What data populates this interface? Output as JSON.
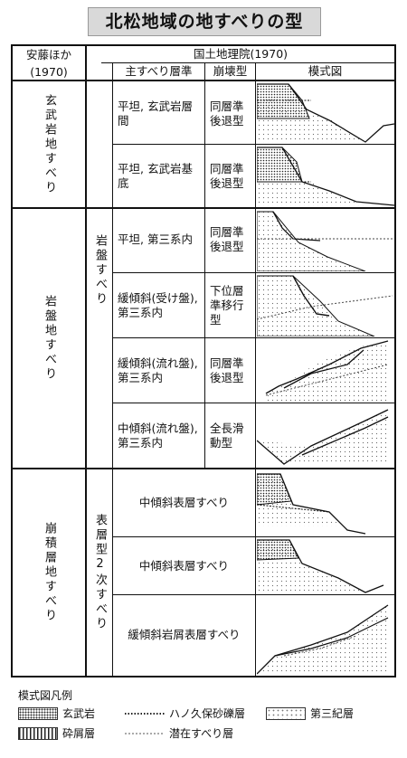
{
  "title": "北松地域の地すべりの型",
  "header": {
    "left_line1": "安藤ほか",
    "left_line2": "(1970)",
    "right_group": "国土地理院(1970)",
    "col_slip": "主すべり層準",
    "col_collapse": "崩壊型",
    "col_diagram": "模式図"
  },
  "groups": {
    "genbu": "玄武岩地すべり",
    "ganban": "岩盤地すべり",
    "hoseki": "崩積層地すべり",
    "ganban_sub": "岩盤すべり",
    "hyoso_sub": "表層型2次すべり"
  },
  "rows": [
    {
      "slip": "平坦, 玄武岩層間",
      "type": "同層準後退型"
    },
    {
      "slip": "平坦, 玄武岩基底",
      "type": "同層準後退型"
    },
    {
      "slip": "平坦, 第三系内",
      "type": "同層準後退型"
    },
    {
      "slip": "緩傾斜(受け盤), 第三系内",
      "type": "下位層準移行型"
    },
    {
      "slip": "緩傾斜(流れ盤), 第三系内",
      "type": "同層準後退型"
    },
    {
      "slip": "中傾斜(流れ盤), 第三系内",
      "type": "全長滑動型"
    },
    {
      "slip": "中傾斜表層すべり",
      "type": ""
    },
    {
      "slip": "中傾斜表層すべり",
      "type": ""
    },
    {
      "slip": "緩傾斜岩屑表層すべり",
      "type": ""
    }
  ],
  "legend": {
    "title": "模式図凡例",
    "items": [
      {
        "label": "玄武岩",
        "pattern": "basalt"
      },
      {
        "label": "ハノ久保砂礫層",
        "pattern": "gravel-line"
      },
      {
        "label": "第三紀層",
        "pattern": "tertiary"
      },
      {
        "label": "砕屑層",
        "pattern": "debris"
      },
      {
        "label": "潜在すべり層",
        "pattern": "latent-slip"
      }
    ]
  }
}
